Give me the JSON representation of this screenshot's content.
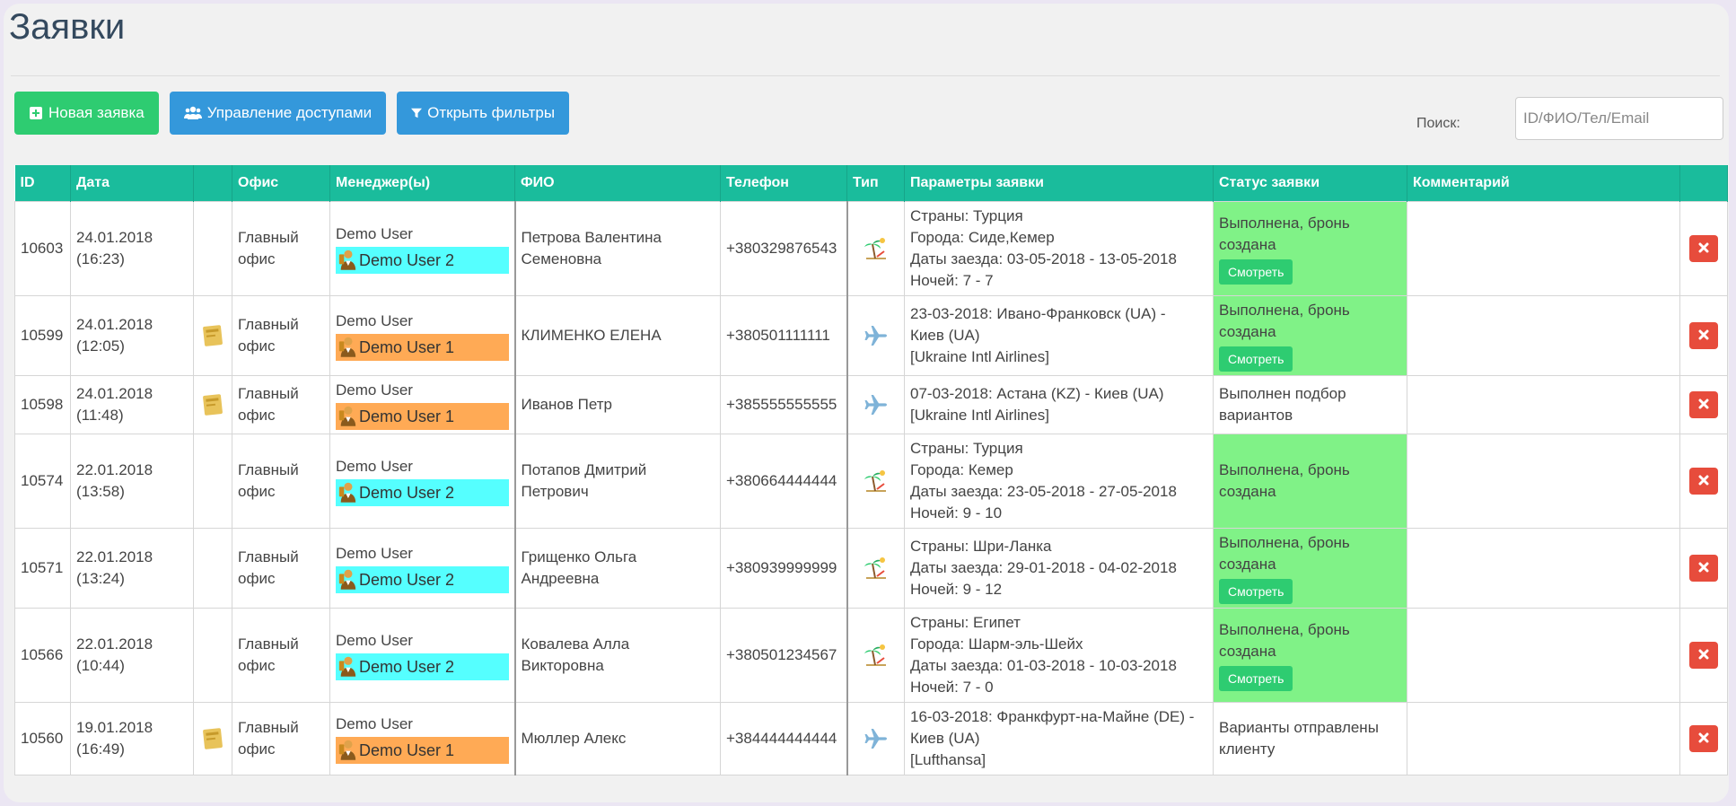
{
  "page": {
    "title": "Заявки"
  },
  "toolbar": {
    "new_request": "Новая заявка",
    "access": "Управление доступами",
    "filters": "Открыть фильтры"
  },
  "search": {
    "label": "Поиск:",
    "placeholder": "ID/ФИО/Тел/Email"
  },
  "table": {
    "headers": [
      "ID",
      "Дата",
      "",
      "Офис",
      "Менеджер(ы)",
      "ФИО",
      "Телефон",
      "Тип",
      "Параметры заявки",
      "Статус заявки",
      "Комментарий",
      ""
    ],
    "view_label": "Смотреть",
    "rows": [
      {
        "id": "10603",
        "date": "24.01.2018",
        "time": "(16:23)",
        "note_icon": false,
        "office1": "Главный",
        "office2": "офис",
        "mgr": "Demo User",
        "mgr_tag": "Demo User 2",
        "tag_color": "cyan",
        "fio1": "Петрова Валентина",
        "fio2": "Семеновна",
        "phone": "+380329876543",
        "type": "beach",
        "params": [
          "Страны: Турция",
          "Города: Сиде,Кемер",
          "Даты заезда: 03-05-2018 - 13-05-2018",
          "Ночей: 7 - 7"
        ],
        "status": [
          "Выполнена, бронь",
          "создана"
        ],
        "status_done": true,
        "view": true
      },
      {
        "id": "10599",
        "date": "24.01.2018",
        "time": "(12:05)",
        "note_icon": true,
        "office1": "Главный",
        "office2": "офис",
        "mgr": "Demo User",
        "mgr_tag": "Demo User 1",
        "tag_color": "orange",
        "fio1": "КЛИМЕНКО ЕЛЕНА",
        "fio2": "",
        "phone": "+380501111111",
        "type": "plane",
        "params": [
          "23-03-2018: Ивано-Франковск (UA) -",
          "Киев (UA)",
          "[Ukraine Intl Airlines]"
        ],
        "status": [
          "Выполнена, бронь",
          "создана"
        ],
        "status_done": true,
        "view": true
      },
      {
        "id": "10598",
        "date": "24.01.2018",
        "time": "(11:48)",
        "note_icon": true,
        "office1": "Главный",
        "office2": "офис",
        "mgr": "Demo User",
        "mgr_tag": "Demo User 1",
        "tag_color": "orange",
        "fio1": "Иванов Петр",
        "fio2": "",
        "phone": "+385555555555",
        "type": "plane",
        "params": [
          "07-03-2018: Астана (KZ) - Киев (UA)",
          "[Ukraine Intl Airlines]"
        ],
        "status": [
          "Выполнен подбор",
          "вариантов"
        ],
        "status_done": false,
        "view": false
      },
      {
        "id": "10574",
        "date": "22.01.2018",
        "time": "(13:58)",
        "note_icon": false,
        "office1": "Главный",
        "office2": "офис",
        "mgr": "Demo User",
        "mgr_tag": "Demo User 2",
        "tag_color": "cyan",
        "fio1": "Потапов Дмитрий",
        "fio2": "Петрович",
        "phone": "+380664444444",
        "type": "beach",
        "params": [
          "Страны: Турция",
          "Города: Кемер",
          "Даты заезда: 23-05-2018 - 27-05-2018",
          "Ночей: 9 - 10"
        ],
        "status": [
          "Выполнена, бронь",
          "создана"
        ],
        "status_done": true,
        "view": false
      },
      {
        "id": "10571",
        "date": "22.01.2018",
        "time": "(13:24)",
        "note_icon": false,
        "office1": "Главный",
        "office2": "офис",
        "mgr": "Demo User",
        "mgr_tag": "Demo User 2",
        "tag_color": "cyan",
        "fio1": "Грищенко Ольга",
        "fio2": "Андреевна",
        "phone": "+380939999999",
        "type": "beach",
        "params": [
          "Страны: Шри-Ланка",
          "Даты заезда: 29-01-2018 - 04-02-2018",
          "Ночей: 9 - 12"
        ],
        "status": [
          "Выполнена, бронь",
          "создана"
        ],
        "status_done": true,
        "view": true
      },
      {
        "id": "10566",
        "date": "22.01.2018",
        "time": "(10:44)",
        "note_icon": false,
        "office1": "Главный",
        "office2": "офис",
        "mgr": "Demo User",
        "mgr_tag": "Demo User 2",
        "tag_color": "cyan",
        "fio1": "Ковалева Алла",
        "fio2": "Викторовна",
        "phone": "+380501234567",
        "type": "beach",
        "params": [
          "Страны: Египет",
          "Города: Шарм-эль-Шейх",
          "Даты заезда: 01-03-2018 - 10-03-2018",
          "Ночей: 7 - 0"
        ],
        "status": [
          "Выполнена, бронь",
          "создана"
        ],
        "status_done": true,
        "view": true
      },
      {
        "id": "10560",
        "date": "19.01.2018",
        "time": "(16:49)",
        "note_icon": true,
        "office1": "Главный",
        "office2": "офис",
        "mgr": "Demo User",
        "mgr_tag": "Demo User 1",
        "tag_color": "orange",
        "fio1": "Мюллер Алекс",
        "fio2": "",
        "phone": "+384444444444",
        "type": "plane",
        "params": [
          "16-03-2018: Франкфурт-на-Майне (DE) -",
          "Киев (UA)",
          "[Lufthansa]"
        ],
        "status": [
          "Варианты отправлены",
          "клиенту"
        ],
        "status_done": false,
        "view": false
      }
    ]
  }
}
